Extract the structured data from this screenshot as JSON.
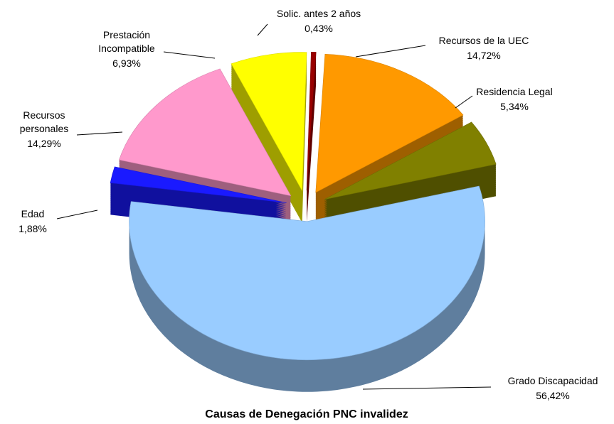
{
  "chart_data": {
    "type": "pie",
    "title": "Causas de Denegación PNC invalidez",
    "categories": [
      "Recursos de la UEC",
      "Residencia Legal",
      "Grado Discapacidad",
      "Edad",
      "Recursos personales",
      "Prestación Incompatible",
      "Solic. antes 2 años"
    ],
    "values": [
      14.72,
      5.34,
      56.42,
      1.88,
      14.29,
      6.93,
      0.43
    ],
    "value_labels": [
      "14,72%",
      "5,34%",
      "56,42%",
      "1,88%",
      "14,29%",
      "6,93%",
      "0,43%"
    ],
    "colors": [
      "#ff9900",
      "#808000",
      "#99ccff",
      "#1a1aff",
      "#ff99cc",
      "#ffff00",
      "#990000"
    ]
  }
}
